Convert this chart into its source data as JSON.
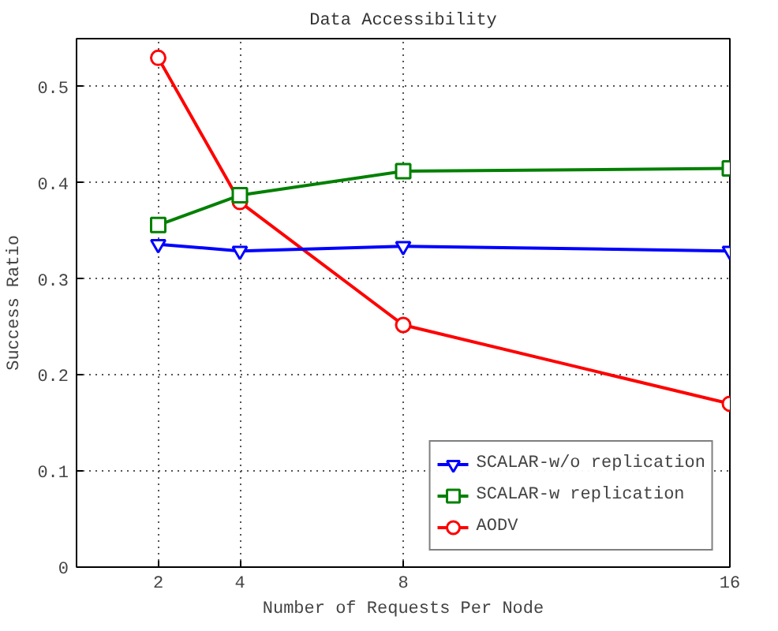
{
  "chart_data": {
    "type": "line",
    "title": "Data Accessibility",
    "xlabel": "Number of Requests Per Node",
    "ylabel": "Success Ratio",
    "x": [
      2,
      4,
      8,
      16
    ],
    "series": [
      {
        "name": "SCALAR-w/o replication",
        "color": "#0000ff",
        "values": [
          0.336,
          0.329,
          0.334,
          0.329
        ],
        "marker": "triangle"
      },
      {
        "name": "SCALAR-w replication",
        "color": "#008000",
        "values": [
          0.356,
          0.387,
          0.412,
          0.415
        ],
        "marker": "square"
      },
      {
        "name": "AODV",
        "color": "#ff0000",
        "values": [
          0.53,
          0.38,
          0.252,
          0.17
        ],
        "marker": "circle"
      }
    ],
    "xlim": [
      0,
      16
    ],
    "xticks": [
      2,
      4,
      8,
      16
    ],
    "ylim": [
      0,
      0.55
    ],
    "yticks": [
      0,
      0.1,
      0.2,
      0.3,
      0.4,
      0.5
    ],
    "grid": true,
    "legend": "bottom right"
  }
}
